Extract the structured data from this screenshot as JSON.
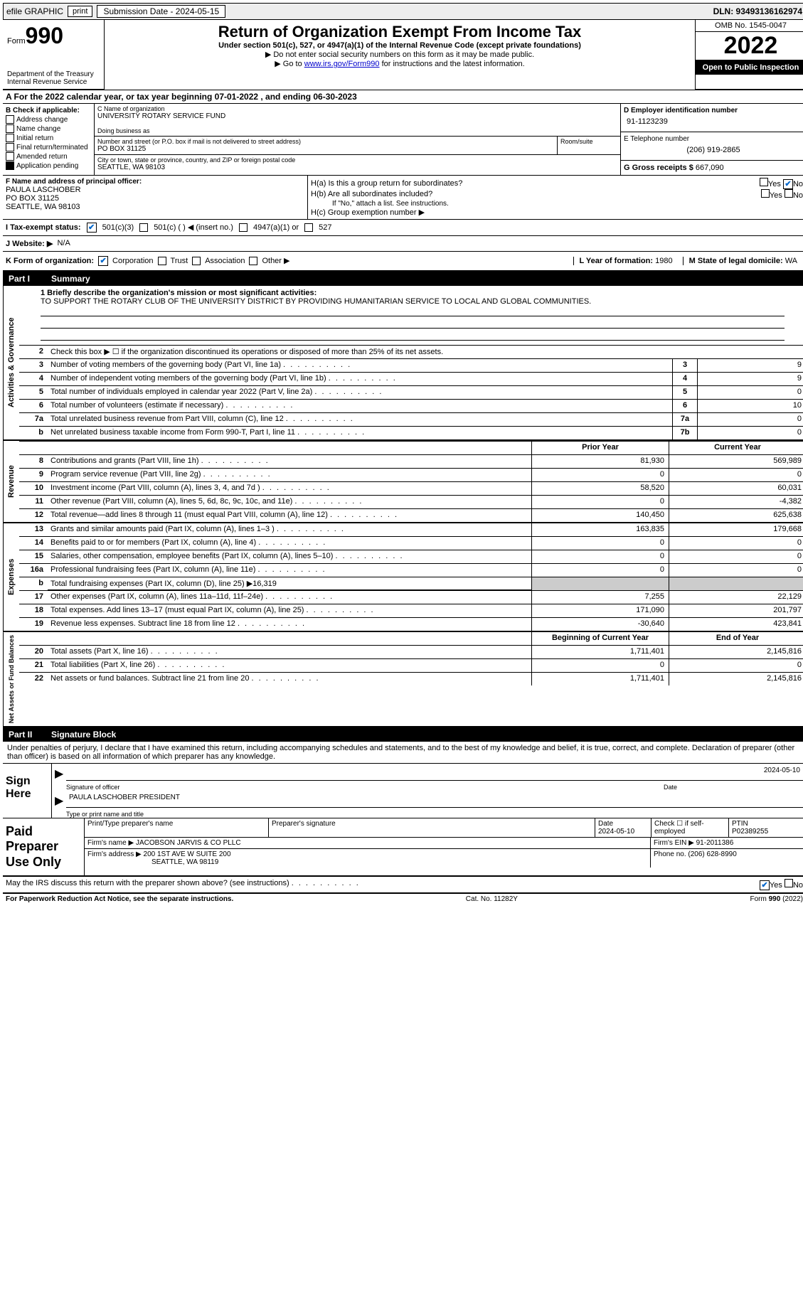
{
  "topbar": {
    "efile_label": "efile GRAPHIC",
    "print_btn": "print",
    "submission_label": "Submission Date - 2024-05-15",
    "dln_label": "DLN: 93493136162974"
  },
  "header": {
    "form_word": "Form",
    "form_num": "990",
    "dept": "Department of the Treasury\nInternal Revenue Service",
    "title": "Return of Organization Exempt From Income Tax",
    "sub1": "Under section 501(c), 527, or 4947(a)(1) of the Internal Revenue Code (except private foundations)",
    "sub2": "▶ Do not enter social security numbers on this form as it may be made public.",
    "sub3_pre": "▶ Go to ",
    "sub3_link": "www.irs.gov/Form990",
    "sub3_post": " for instructions and the latest information.",
    "omb": "OMB No. 1545-0047",
    "year": "2022",
    "open": "Open to Public Inspection"
  },
  "A": {
    "text": "A For the 2022 calendar year, or tax year beginning 07-01-2022     , and ending 06-30-2023"
  },
  "B": {
    "label": "B Check if applicable:",
    "items": [
      "Address change",
      "Name change",
      "Initial return",
      "Final return/terminated",
      "Amended return",
      "Application pending"
    ]
  },
  "C": {
    "name_label": "C Name of organization",
    "name": "UNIVERSITY ROTARY SERVICE FUND",
    "dba_label": "Doing business as",
    "addr_label": "Number and street (or P.O. box if mail is not delivered to street address)",
    "room_label": "Room/suite",
    "addr": "PO BOX 31125",
    "city_label": "City or town, state or province, country, and ZIP or foreign postal code",
    "city": "SEATTLE, WA  98103"
  },
  "D": {
    "ein_label": "D Employer identification number",
    "ein": "91-1123239",
    "phone_label": "E Telephone number",
    "phone": "(206) 919-2865",
    "gross_label": "G Gross receipts $",
    "gross": "667,090"
  },
  "F": {
    "label": "F  Name and address of principal officer:",
    "name": "PAULA LASCHOBER",
    "addr1": "PO BOX 31125",
    "addr2": "SEATTLE, WA  98103"
  },
  "H": {
    "a": "H(a)  Is this a group return for subordinates?",
    "b": "H(b)  Are all subordinates included?",
    "b_note": "If \"No,\" attach a list. See instructions.",
    "c": "H(c)  Group exemption number ▶",
    "yes": "Yes",
    "no": "No"
  },
  "I": {
    "label": "I  Tax-exempt status:",
    "opts": [
      "501(c)(3)",
      "501(c) (  ) ◀ (insert no.)",
      "4947(a)(1) or",
      "527"
    ]
  },
  "J": {
    "label": "J  Website: ▶",
    "val": "N/A"
  },
  "K": {
    "label": "K Form of organization:",
    "opts": [
      "Corporation",
      "Trust",
      "Association",
      "Other ▶"
    ],
    "L_label": "L Year of formation:",
    "L_val": "1980",
    "M_label": "M State of legal domicile:",
    "M_val": "WA"
  },
  "part1": {
    "num": "Part I",
    "title": "Summary"
  },
  "mission": {
    "q1": "1  Briefly describe the organization's mission or most significant activities:",
    "text": "TO SUPPORT THE ROTARY CLUB OF THE UNIVERSITY DISTRICT BY PROVIDING HUMANITARIAN SERVICE TO LOCAL AND GLOBAL COMMUNITIES."
  },
  "gov": {
    "2": "Check this box ▶ ☐  if the organization discontinued its operations or disposed of more than 25% of its net assets.",
    "rows": [
      {
        "n": "3",
        "t": "Number of voting members of the governing body (Part VI, line 1a)",
        "box": "3",
        "v": "9"
      },
      {
        "n": "4",
        "t": "Number of independent voting members of the governing body (Part VI, line 1b)",
        "box": "4",
        "v": "9"
      },
      {
        "n": "5",
        "t": "Total number of individuals employed in calendar year 2022 (Part V, line 2a)",
        "box": "5",
        "v": "0"
      },
      {
        "n": "6",
        "t": "Total number of volunteers (estimate if necessary)",
        "box": "6",
        "v": "10"
      },
      {
        "n": "7a",
        "t": "Total unrelated business revenue from Part VIII, column (C), line 12",
        "box": "7a",
        "v": "0"
      },
      {
        "n": "b",
        "t": "Net unrelated business taxable income from Form 990-T, Part I, line 11",
        "box": "7b",
        "v": "0"
      }
    ]
  },
  "cols": {
    "prior": "Prior Year",
    "current": "Current Year",
    "begin": "Beginning of Current Year",
    "end": "End of Year"
  },
  "rev": {
    "label": "Revenue",
    "rows": [
      {
        "n": "8",
        "t": "Contributions and grants (Part VIII, line 1h)",
        "p": "81,930",
        "c": "569,989"
      },
      {
        "n": "9",
        "t": "Program service revenue (Part VIII, line 2g)",
        "p": "0",
        "c": "0"
      },
      {
        "n": "10",
        "t": "Investment income (Part VIII, column (A), lines 3, 4, and 7d )",
        "p": "58,520",
        "c": "60,031"
      },
      {
        "n": "11",
        "t": "Other revenue (Part VIII, column (A), lines 5, 6d, 8c, 9c, 10c, and 11e)",
        "p": "0",
        "c": "-4,382"
      },
      {
        "n": "12",
        "t": "Total revenue—add lines 8 through 11 (must equal Part VIII, column (A), line 12)",
        "p": "140,450",
        "c": "625,638"
      }
    ]
  },
  "exp": {
    "label": "Expenses",
    "rows": [
      {
        "n": "13",
        "t": "Grants and similar amounts paid (Part IX, column (A), lines 1–3 )",
        "p": "163,835",
        "c": "179,668"
      },
      {
        "n": "14",
        "t": "Benefits paid to or for members (Part IX, column (A), line 4)",
        "p": "0",
        "c": "0"
      },
      {
        "n": "15",
        "t": "Salaries, other compensation, employee benefits (Part IX, column (A), lines 5–10)",
        "p": "0",
        "c": "0"
      },
      {
        "n": "16a",
        "t": "Professional fundraising fees (Part IX, column (A), line 11e)",
        "p": "0",
        "c": "0"
      },
      {
        "n": "b",
        "t": "Total fundraising expenses (Part IX, column (D), line 25) ▶16,319",
        "grey": true
      },
      {
        "n": "17",
        "t": "Other expenses (Part IX, column (A), lines 11a–11d, 11f–24e)",
        "p": "7,255",
        "c": "22,129"
      },
      {
        "n": "18",
        "t": "Total expenses. Add lines 13–17 (must equal Part IX, column (A), line 25)",
        "p": "171,090",
        "c": "201,797"
      },
      {
        "n": "19",
        "t": "Revenue less expenses. Subtract line 18 from line 12",
        "p": "-30,640",
        "c": "423,841"
      }
    ]
  },
  "net": {
    "label": "Net Assets or Fund Balances",
    "rows": [
      {
        "n": "20",
        "t": "Total assets (Part X, line 16)",
        "p": "1,711,401",
        "c": "2,145,816"
      },
      {
        "n": "21",
        "t": "Total liabilities (Part X, line 26)",
        "p": "0",
        "c": "0"
      },
      {
        "n": "22",
        "t": "Net assets or fund balances. Subtract line 21 from line 20",
        "p": "1,711,401",
        "c": "2,145,816"
      }
    ]
  },
  "part2": {
    "num": "Part II",
    "title": "Signature Block"
  },
  "declare": "Under penalties of perjury, I declare that I have examined this return, including accompanying schedules and statements, and to the best of my knowledge and belief, it is true, correct, and complete. Declaration of preparer (other than officer) is based on all information of which preparer has any knowledge.",
  "sign": {
    "label": "Sign Here",
    "sig_of_officer": "Signature of officer",
    "date": "2024-05-10",
    "date_label": "Date",
    "name": "PAULA LASCHOBER  PRESIDENT",
    "type_label": "Type or print name and title"
  },
  "prep": {
    "label": "Paid Preparer Use Only",
    "print_label": "Print/Type preparer's name",
    "sig_label": "Preparer's signature",
    "date_label": "Date",
    "date": "2024-05-10",
    "check_label": "Check ☐ if self-employed",
    "ptin_label": "PTIN",
    "ptin": "P02389255",
    "firm_name_label": "Firm's name      ▶",
    "firm_name": "JACOBSON JARVIS & CO PLLC",
    "firm_ein_label": "Firm's EIN ▶",
    "firm_ein": "91-2011386",
    "firm_addr_label": "Firm's address ▶",
    "firm_addr": "200 1ST AVE W SUITE 200",
    "firm_city": "SEATTLE, WA  98119",
    "phone_label": "Phone no.",
    "phone": "(206) 628-8990"
  },
  "discuss": {
    "text": "May the IRS discuss this return with the preparer shown above? (see instructions)",
    "yes": "Yes",
    "no": "No"
  },
  "footer": {
    "left": "For Paperwork Reduction Act Notice, see the separate instructions.",
    "mid": "Cat. No. 11282Y",
    "right": "Form 990 (2022)"
  }
}
